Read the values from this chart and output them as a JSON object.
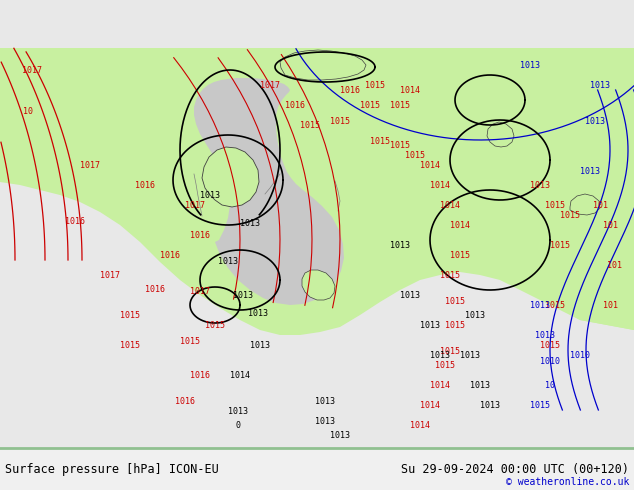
{
  "title_left": "Surface pressure [hPa] ICON-EU",
  "title_right": "Su 29-09-2024 00:00 UTC (00+120)",
  "watermark": "© weatheronline.co.uk",
  "bg_color": "#e8e8e8",
  "land_color": "#c8f0a0",
  "sea_color": "#e0e0e0",
  "isobar_color_red": "#cc0000",
  "isobar_color_black": "#000000",
  "isobar_color_blue": "#0000cc",
  "bottom_bar_color": "#f0f0f0",
  "bottom_border_color": "#90c090",
  "label_fontsize": 7.5,
  "footer_fontsize": 8.5
}
